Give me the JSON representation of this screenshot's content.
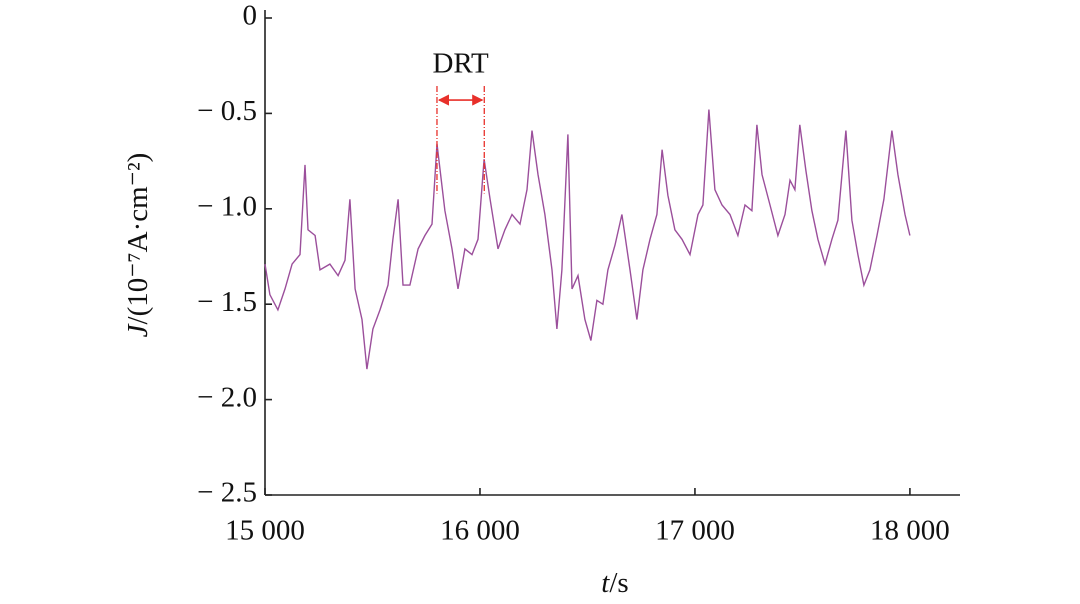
{
  "chart_data": {
    "type": "line",
    "xlabel": {
      "var": "t",
      "unit": "/s"
    },
    "ylabel": {
      "var": "J",
      "unit": "/(10⁻⁷A·cm⁻²)"
    },
    "xlim": [
      15000,
      18233
    ],
    "ylim": [
      -2.5,
      0
    ],
    "xticks": [
      {
        "value": 15000,
        "label": "15 000"
      },
      {
        "value": 16000,
        "label": "16 000"
      },
      {
        "value": 17000,
        "label": "17 000"
      },
      {
        "value": 18000,
        "label": "18 000"
      }
    ],
    "yticks": [
      0,
      {
        "value": -0.5,
        "label": "− 0.5"
      },
      {
        "value": -1.0,
        "label": "− 1.0"
      },
      {
        "value": -1.5,
        "label": "− 1.5"
      },
      {
        "value": -2.0,
        "label": "− 2.0"
      },
      {
        "value": -2.5,
        "label": "− 2.5"
      }
    ],
    "annotations": [
      {
        "text": "DRT",
        "x1": 15800,
        "x2": 16020,
        "y": -0.43,
        "color": "#e8302a"
      }
    ],
    "series": [
      {
        "color": "#9b4f9b",
        "x": [
          15000,
          15023,
          15060,
          15093,
          15126,
          15163,
          15186,
          15200,
          15233,
          15256,
          15302,
          15340,
          15372,
          15395,
          15419,
          15451,
          15474,
          15502,
          15535,
          15572,
          15595,
          15619,
          15642,
          15674,
          15712,
          15744,
          15777,
          15800,
          15837,
          15870,
          15898,
          15930,
          15963,
          15991,
          16019,
          16047,
          16084,
          16116,
          16149,
          16186,
          16219,
          16242,
          16270,
          16302,
          16335,
          16358,
          16381,
          16409,
          16428,
          16456,
          16488,
          16516,
          16544,
          16572,
          16595,
          16628,
          16660,
          16698,
          16730,
          16758,
          16791,
          16823,
          16847,
          16874,
          16907,
          16940,
          16977,
          17014,
          17037,
          17065,
          17093,
          17126,
          17163,
          17200,
          17233,
          17265,
          17288,
          17312,
          17349,
          17386,
          17419,
          17442,
          17465,
          17488,
          17516,
          17544,
          17572,
          17605,
          17637,
          17665,
          17702,
          17730,
          17758,
          17786,
          17814,
          17847,
          17879,
          17916,
          17944,
          17977,
          18000
        ],
        "values": [
          -1.29,
          -1.45,
          -1.53,
          -1.42,
          -1.29,
          -1.24,
          -0.77,
          -1.11,
          -1.14,
          -1.32,
          -1.29,
          -1.35,
          -1.27,
          -0.95,
          -1.42,
          -1.58,
          -1.84,
          -1.63,
          -1.53,
          -1.4,
          -1.16,
          -0.95,
          -1.4,
          -1.4,
          -1.21,
          -1.14,
          -1.08,
          -0.66,
          -1.01,
          -1.21,
          -1.42,
          -1.21,
          -1.24,
          -1.16,
          -0.74,
          -0.95,
          -1.21,
          -1.11,
          -1.03,
          -1.08,
          -0.9,
          -0.59,
          -0.82,
          -1.03,
          -1.32,
          -1.63,
          -1.32,
          -0.61,
          -1.42,
          -1.35,
          -1.58,
          -1.69,
          -1.48,
          -1.5,
          -1.32,
          -1.19,
          -1.03,
          -1.32,
          -1.58,
          -1.32,
          -1.16,
          -1.03,
          -0.69,
          -0.93,
          -1.11,
          -1.16,
          -1.24,
          -1.03,
          -0.98,
          -0.48,
          -0.9,
          -0.98,
          -1.03,
          -1.14,
          -0.98,
          -1.01,
          -0.56,
          -0.82,
          -0.98,
          -1.14,
          -1.03,
          -0.85,
          -0.9,
          -0.56,
          -0.8,
          -1.01,
          -1.16,
          -1.29,
          -1.16,
          -1.06,
          -0.59,
          -1.06,
          -1.24,
          -1.4,
          -1.32,
          -1.14,
          -0.95,
          -0.59,
          -0.82,
          -1.03,
          -1.14
        ]
      }
    ]
  }
}
